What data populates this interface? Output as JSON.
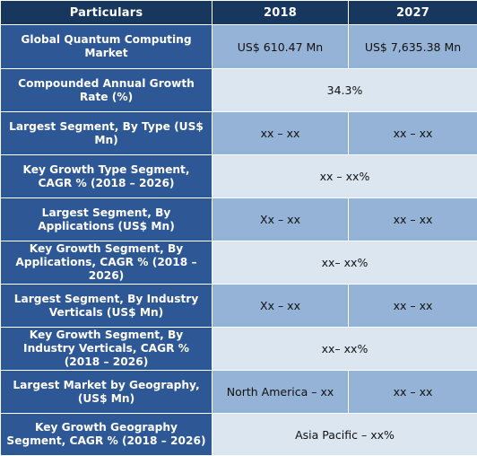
{
  "header": {
    "particulars": "Particulars",
    "y2018": "2018",
    "y2027": "2027"
  },
  "rows": [
    {
      "label": "Global Quantum Computing Market",
      "v2018": "US$ 610.47 Mn",
      "v2027": "US$ 7,635.38 Mn"
    },
    {
      "label": "Compounded Annual Growth Rate (%)",
      "merged": "34.3%"
    },
    {
      "label": "Largest Segment, By Type (US$ Mn)",
      "v2018": "xx – xx",
      "v2027": "xx – xx"
    },
    {
      "label": "Key Growth Type Segment, CAGR % (2018 – 2026)",
      "merged": "xx – xx%"
    },
    {
      "label": "Largest Segment, By Applications (US$ Mn)",
      "v2018": "Xx – xx",
      "v2027": "xx – xx"
    },
    {
      "label": "Key Growth Segment, By Applications, CAGR % (2018 – 2026)",
      "merged": "xx– xx%"
    },
    {
      "label": "Largest Segment, By Industry Verticals (US$ Mn)",
      "v2018": "Xx – xx",
      "v2027": "xx – xx"
    },
    {
      "label": "Key Growth Segment, By Industry Verticals, CAGR % (2018 – 2026)",
      "merged": "xx– xx%"
    },
    {
      "label": "Largest Market by Geography, (US$ Mn)",
      "v2018": "North America – xx",
      "v2027": "xx – xx"
    },
    {
      "label": "Key Growth Geography Segment, CAGR % (2018 – 2026)",
      "merged": "Asia Pacific – xx%"
    }
  ]
}
